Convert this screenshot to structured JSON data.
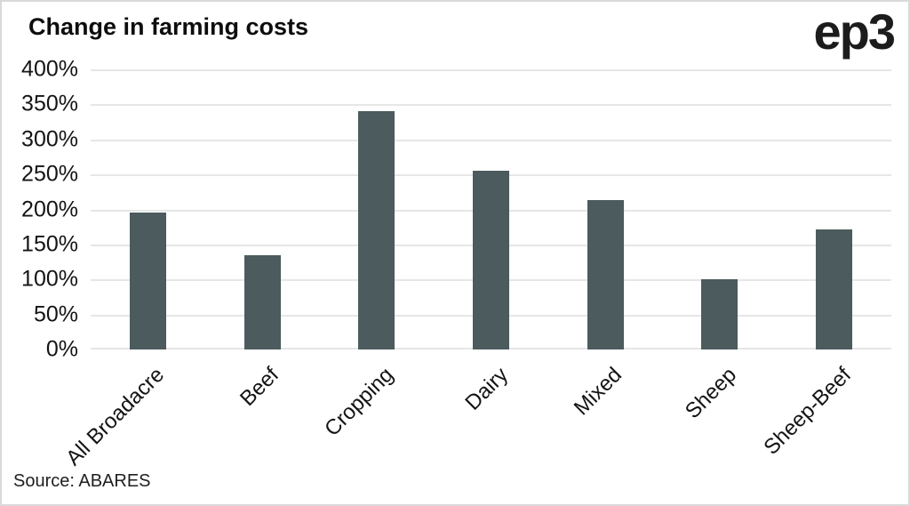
{
  "header": {
    "title": "Change in farming costs",
    "logo_text": "ep3"
  },
  "footer": {
    "source": "Source: ABARES"
  },
  "chart_data": {
    "type": "bar",
    "title": "Change in farming costs",
    "categories": [
      "All Broadacre",
      "Beef",
      "Cropping",
      "Dairy",
      "Mixed",
      "Sheep",
      "Sheep-Beef"
    ],
    "values": [
      195,
      134,
      340,
      255,
      213,
      100,
      171
    ],
    "xlabel": "",
    "ylabel": "",
    "ylim": [
      0,
      400
    ],
    "ytick_step": 50,
    "ytick_suffix": "%",
    "ytick_labels": [
      "400%",
      "350%",
      "300%",
      "250%",
      "200%",
      "150%",
      "100%",
      "50%",
      "0%"
    ],
    "grid": true,
    "legend": "none",
    "bar_color": "#4c5b5d",
    "grid_color": "#e6e6e6",
    "source": "Source: ABARES"
  }
}
